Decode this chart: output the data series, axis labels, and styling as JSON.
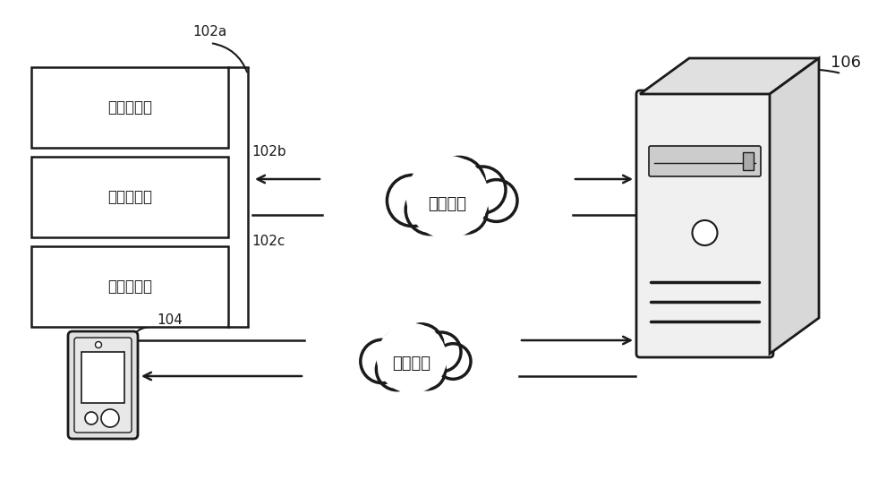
{
  "bg_color": "#ffffff",
  "line_color": "#1a1a1a",
  "box_fill": "#ffffff",
  "box_stroke": "#1a1a1a",
  "box_labels": [
    "物联网设备",
    "物联网设备",
    "物联网设备"
  ],
  "cloud_label": "网络连接",
  "server_label": "106",
  "phone_label": "104",
  "label_102a": "102a",
  "label_102b": "102b",
  "label_102c": "102c",
  "font_size_label": 11,
  "font_size_box": 12,
  "font_size_cloud": 13
}
